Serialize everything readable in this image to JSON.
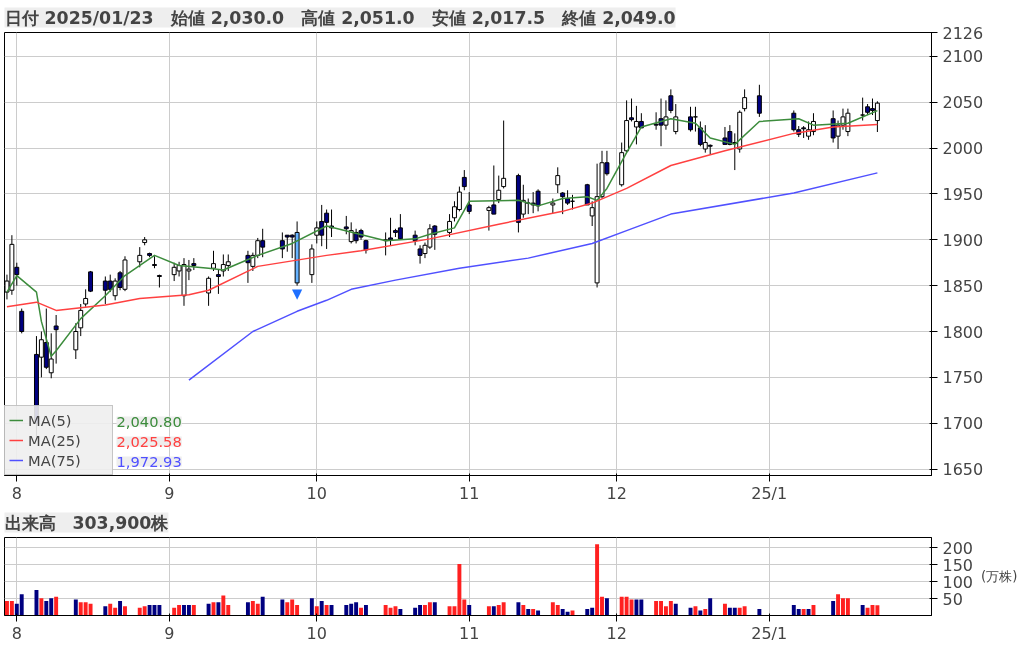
{
  "chart_data": [
    {
      "type": "candlestick",
      "title": "日付 2025/01/23　始値 2,030.0　高値 2,051.0　安値 2,017.5　終値 2,049.0",
      "x": [
        "2024-07-30",
        "2024-07-31",
        "2024-08-01",
        "2024-08-02",
        "2024-08-05",
        "2024-08-06",
        "2024-08-07",
        "2024-08-08",
        "2024-08-09",
        "2024-08-13",
        "2024-08-14",
        "2024-08-15",
        "2024-08-16",
        "2024-08-19",
        "2024-08-20",
        "2024-08-21",
        "2024-08-22",
        "2024-08-23",
        "2024-08-26",
        "2024-08-27",
        "2024-08-28",
        "2024-08-29",
        "2024-08-30",
        "2024-09-02",
        "2024-09-03",
        "2024-09-04",
        "2024-09-05",
        "2024-09-06",
        "2024-09-09",
        "2024-09-10",
        "2024-09-11",
        "2024-09-12",
        "2024-09-13",
        "2024-09-17",
        "2024-09-18",
        "2024-09-19",
        "2024-09-20",
        "2024-09-24",
        "2024-09-25",
        "2024-09-26",
        "2024-09-27",
        "2024-09-30",
        "2024-10-01",
        "2024-10-02",
        "2024-10-03",
        "2024-10-04",
        "2024-10-07",
        "2024-10-08",
        "2024-10-09",
        "2024-10-10",
        "2024-10-11",
        "2024-10-15",
        "2024-10-16",
        "2024-10-17",
        "2024-10-18",
        "2024-10-21",
        "2024-10-22",
        "2024-10-23",
        "2024-10-24",
        "2024-10-25",
        "2024-10-28",
        "2024-10-29",
        "2024-10-30",
        "2024-10-31",
        "2024-11-01",
        "2024-11-05",
        "2024-11-06",
        "2024-11-07",
        "2024-11-08",
        "2024-11-11",
        "2024-11-12",
        "2024-11-13",
        "2024-11-14",
        "2024-11-15",
        "2024-11-18",
        "2024-11-19",
        "2024-11-20",
        "2024-11-21",
        "2024-11-22",
        "2024-11-25",
        "2024-11-26",
        "2024-11-27",
        "2024-11-28",
        "2024-11-29",
        "2024-12-02",
        "2024-12-03",
        "2024-12-04",
        "2024-12-05",
        "2024-12-06",
        "2024-12-09",
        "2024-12-10",
        "2024-12-11",
        "2024-12-12",
        "2024-12-13",
        "2024-12-16",
        "2024-12-17",
        "2024-12-18",
        "2024-12-19",
        "2024-12-20",
        "2024-12-23",
        "2024-12-24",
        "2024-12-25",
        "2024-12-26",
        "2024-12-27",
        "2024-12-30",
        "2025-01-06",
        "2025-01-07",
        "2025-01-08",
        "2025-01-09",
        "2025-01-10",
        "2025-01-14",
        "2025-01-15",
        "2025-01-16",
        "2025-01-17",
        "2025-01-20",
        "2025-01-21",
        "2025-01-22",
        "2025-01-23"
      ],
      "ohlc": [
        [
          1843,
          1862,
          1835,
          1855
        ],
        [
          1845,
          1905,
          1840,
          1895
        ],
        [
          1870,
          1875,
          1850,
          1862
        ],
        [
          1822,
          1825,
          1798,
          1800
        ],
        [
          1775,
          1795,
          1685,
          1700
        ],
        [
          1772,
          1800,
          1750,
          1791
        ],
        [
          1788,
          1825,
          1759,
          1761
        ],
        [
          1755,
          1798,
          1749,
          1770
        ],
        [
          1806,
          1818,
          1765,
          1802
        ],
        [
          1780,
          1809,
          1770,
          1800
        ],
        [
          1804,
          1830,
          1795,
          1823
        ],
        [
          1830,
          1846,
          1827,
          1836
        ],
        [
          1865,
          1866,
          1843,
          1844
        ],
        [
          1855,
          1860,
          1830,
          1845
        ],
        [
          1855,
          1862,
          1843,
          1846
        ],
        [
          1839,
          1858,
          1834,
          1855
        ],
        [
          1864,
          1866,
          1845,
          1848
        ],
        [
          1846,
          1882,
          1844,
          1878
        ],
        [
          1876,
          1892,
          1870,
          1883
        ],
        [
          1897,
          1903,
          1894,
          1900
        ],
        [
          1885,
          1886,
          1881,
          1883
        ],
        [
          1873,
          1882,
          1869,
          1872
        ],
        [
          1861,
          1862,
          1848,
          1860
        ],
        [
          1862,
          1875,
          1855,
          1870
        ],
        [
          1866,
          1876,
          1860,
          1872
        ],
        [
          1839,
          1880,
          1828,
          1873
        ],
        [
          1866,
          1878,
          1856,
          1868
        ],
        [
          1874,
          1880,
          1867,
          1872
        ],
        [
          1842,
          1860,
          1828,
          1858
        ],
        [
          1869,
          1888,
          1866,
          1874
        ],
        [
          1862,
          1868,
          1841,
          1860
        ],
        [
          1866,
          1884,
          1860,
          1873
        ],
        [
          1872,
          1884,
          1866,
          1876
        ],
        [
          1883,
          1888,
          1853,
          1875
        ],
        [
          1871,
          1886,
          1866,
          1883
        ],
        [
          1883,
          1902,
          1880,
          1899
        ],
        [
          1899,
          1912,
          1881,
          1892
        ],
        [
          1899,
          1908,
          1880,
          1890
        ],
        [
          1905,
          1905,
          1887,
          1903
        ],
        [
          1905,
          1906,
          1880,
          1903
        ],
        [
          1908,
          1920,
          1850,
          1853
        ],
        [
          1862,
          1895,
          1853,
          1890
        ],
        [
          1905,
          1920,
          1896,
          1913
        ],
        [
          1920,
          1938,
          1893,
          1905
        ],
        [
          1929,
          1933,
          1890,
          1919
        ],
        [
          1915,
          1933,
          1903,
          1913
        ],
        [
          1914,
          1926,
          1906,
          1912
        ],
        [
          1898,
          1919,
          1896,
          1910
        ],
        [
          1908,
          1912,
          1896,
          1899
        ],
        [
          1910,
          1912,
          1900,
          1903
        ],
        [
          1899,
          1900,
          1885,
          1889
        ],
        [
          1899,
          1908,
          1883,
          1900
        ],
        [
          1902,
          1924,
          1894,
          1900
        ],
        [
          1910,
          1912,
          1903,
          1908
        ],
        [
          1913,
          1928,
          1901,
          1901
        ],
        [
          1905,
          1910,
          1894,
          1899
        ],
        [
          1890,
          1894,
          1874,
          1883
        ],
        [
          1885,
          1897,
          1880,
          1894
        ],
        [
          1892,
          1917,
          1890,
          1912
        ],
        [
          1915,
          1916,
          1889,
          1906
        ],
        [
          1908,
          1928,
          1903,
          1920
        ],
        [
          1924,
          1942,
          1920,
          1936
        ],
        [
          1933,
          1958,
          1931,
          1952
        ],
        [
          1968,
          1976,
          1954,
          1958
        ],
        [
          1938,
          1952,
          1928,
          1931
        ],
        [
          1932,
          1937,
          1910,
          1935
        ],
        [
          1938,
          1981,
          1928,
          1928
        ],
        [
          1944,
          1970,
          1940,
          1954
        ],
        [
          1958,
          2030,
          1956,
          1967
        ],
        [
          1970,
          1972,
          1908,
          1919
        ],
        [
          1928,
          1960,
          1924,
          1943
        ],
        [
          1940,
          1945,
          1928,
          1940
        ],
        [
          1940,
          1952,
          1929,
          1938
        ],
        [
          1953,
          1955,
          1931,
          1937
        ],
        [
          1938,
          1945,
          1929,
          1940
        ],
        [
          1960,
          1979,
          1951,
          1970
        ],
        [
          1951,
          1952,
          1928,
          1947
        ],
        [
          1945,
          1954,
          1938,
          1940
        ],
        [
          1942,
          1949,
          1933,
          1942
        ],
        [
          1960,
          1961,
          1938,
          1938
        ],
        [
          1926,
          1942,
          1915,
          1935
        ],
        [
          1853,
          1983,
          1848,
          1947
        ],
        [
          1947,
          1997,
          1945,
          1984
        ],
        [
          1984,
          1997,
          1970,
          1972
        ],
        [
          1960,
          2006,
          1958,
          1995
        ],
        [
          1997,
          2052,
          1995,
          2030
        ],
        [
          2033,
          2054,
          2029,
          2031
        ],
        [
          2023,
          2046,
          2004,
          2029
        ],
        [
          2029,
          2038,
          2022,
          2022
        ],
        [
          2026,
          2039,
          2020,
          2025
        ],
        [
          2032,
          2054,
          2002,
          2025
        ],
        [
          2025,
          2052,
          2020,
          2034
        ],
        [
          2057,
          2064,
          2038,
          2041
        ],
        [
          2018,
          2048,
          2015,
          2034
        ],
        [
          2034,
          2045,
          2018,
          2020
        ],
        [
          2034,
          2045,
          2018,
          2034
        ],
        [
          2022,
          2029,
          2002,
          2004
        ],
        [
          1999,
          2025,
          1995,
          2006
        ],
        [
          2003,
          2004,
          1993,
          2002
        ],
        [
          2011,
          2023,
          2004,
          2004
        ],
        [
          2018,
          2025,
          2003,
          2004
        ],
        [
          2006,
          2016,
          1976,
          2005
        ],
        [
          1999,
          2041,
          1995,
          2039
        ],
        [
          2043,
          2064,
          2040,
          2055
        ],
        [
          2057,
          2069,
          2034,
          2038
        ],
        [
          2038,
          2041,
          2018,
          2020
        ],
        [
          2020,
          2024,
          2012,
          2015
        ],
        [
          2022,
          2024,
          2011,
          2021
        ],
        [
          2013,
          2029,
          2009,
          2020
        ],
        [
          2018,
          2038,
          2014,
          2029
        ],
        [
          2032,
          2041,
          2006,
          2011
        ],
        [
          2013,
          2030,
          1999,
          2025
        ],
        [
          2025,
          2043,
          2020,
          2034
        ],
        [
          2018,
          2043,
          2013,
          2038
        ],
        [
          2036,
          2055,
          2030,
          2036
        ],
        [
          2045,
          2048,
          2036,
          2039
        ],
        [
          2043,
          2054,
          2036,
          2041
        ],
        [
          2030,
          2051,
          2017.5,
          2049
        ]
      ],
      "colors": [
        "#ffffff",
        "#ffffff",
        "#000080",
        "#000080",
        "#000080",
        "#ffffff",
        "#000080",
        "#ffffff",
        "#000080",
        "#ffffff",
        "#ffffff",
        "#ffffff",
        "#000080",
        "#000080",
        "#000080",
        "#ffffff",
        "#000080",
        "#ffffff",
        "#ffffff",
        "#ffffff",
        "#000080",
        "#000080",
        "#000080",
        "#ffffff",
        "#ffffff",
        "#ffffff",
        "#ffffff",
        "#000080",
        "#ffffff",
        "#ffffff",
        "#000080",
        "#ffffff",
        "#ffffff",
        "#000080",
        "#ffffff",
        "#ffffff",
        "#000080",
        "#000080",
        "#000080",
        "#000080",
        "#66b3ff",
        "#ffffff",
        "#ffffff",
        "#000080",
        "#000080",
        "#000080",
        "#000080",
        "#ffffff",
        "#000080",
        "#000080",
        "#000080",
        "#ffffff",
        "#000080",
        "#000080",
        "#000080",
        "#000080",
        "#000080",
        "#ffffff",
        "#ffffff",
        "#000080",
        "#ffffff",
        "#ffffff",
        "#ffffff",
        "#000080",
        "#000080",
        "#ffffff",
        "#000080",
        "#ffffff",
        "#ffffff",
        "#000080",
        "#ffffff",
        "#000000",
        "#000080",
        "#000080",
        "#ffffff",
        "#ffffff",
        "#000080",
        "#000080",
        "#000000",
        "#000080",
        "#ffffff",
        "#ffffff",
        "#ffffff",
        "#000080",
        "#ffffff",
        "#ffffff",
        "#000080",
        "#ffffff",
        "#000080",
        "#000080",
        "#000080",
        "#ffffff",
        "#000080",
        "#ffffff",
        "#000080",
        "#000000",
        "#000080",
        "#ffffff",
        "#000080",
        "#000080",
        "#000080",
        "#000080",
        "#ffffff",
        "#ffffff",
        "#000080",
        "#000080",
        "#000080",
        "#000080",
        "#ffffff",
        "#ffffff",
        "#000080",
        "#ffffff",
        "#ffffff",
        "#ffffff",
        "#000000",
        "#000080",
        "#000080",
        "#ffffff"
      ],
      "series": [
        {
          "name": "MA(5)",
          "type": "line",
          "color": "#3c8c3c",
          "x": [
            "2024-07-30",
            "2024-08-01",
            "2024-08-05",
            "2024-08-06",
            "2024-08-08",
            "2024-08-09",
            "2024-08-14",
            "2024-08-19",
            "2024-08-23",
            "2024-08-29",
            "2024-09-03",
            "2024-09-09",
            "2024-09-12",
            "2024-09-19",
            "2024-09-26",
            "2024-10-03",
            "2024-10-15",
            "2024-10-21",
            "2024-10-24",
            "2024-10-29",
            "2024-11-01",
            "2024-11-11",
            "2024-11-15",
            "2024-11-20",
            "2024-11-25",
            "2024-11-27",
            "2024-11-29",
            "2024-12-03",
            "2024-12-06",
            "2024-12-12",
            "2024-12-17",
            "2024-12-20",
            "2024-12-25",
            "2024-12-30",
            "2025-01-07",
            "2025-01-10",
            "2025-01-17",
            "2025-01-23"
          ],
          "values": [
            1843,
            1861,
            1843,
            1811,
            1773,
            1779,
            1814,
            1839,
            1861,
            1883,
            1872,
            1869,
            1867,
            1883,
            1896,
            1915,
            1899,
            1901,
            1906,
            1913,
            1942,
            1943,
            1937,
            1945,
            1947,
            1943,
            1956,
            1995,
            2023,
            2032,
            2027,
            2011,
            2004,
            2029,
            2032,
            2025,
            2027,
            2040.8
          ]
        },
        {
          "name": "MA(25)",
          "type": "line",
          "color": "#ff4040",
          "x": [
            "2024-07-30",
            "2024-08-05",
            "2024-08-09",
            "2024-08-19",
            "2024-08-26",
            "2024-09-05",
            "2024-09-09",
            "2024-09-19",
            "2024-10-03",
            "2024-10-10",
            "2024-10-24",
            "2024-11-07",
            "2024-11-20",
            "2024-11-26",
            "2024-12-03",
            "2024-12-12",
            "2024-12-23",
            "2025-01-06",
            "2025-01-14",
            "2025-01-23"
          ],
          "values": [
            1827,
            1832,
            1823,
            1829,
            1836,
            1840,
            1845,
            1871,
            1883,
            1888,
            1901,
            1917,
            1931,
            1940,
            1956,
            1981,
            1997,
            2016,
            2023,
            2025.58
          ]
        },
        {
          "name": "MA(75)",
          "type": "line",
          "color": "#5050ff",
          "x": [
            "2024-09-05",
            "2024-09-18",
            "2024-09-27",
            "2024-10-03",
            "2024-10-08",
            "2024-10-17",
            "2024-10-30",
            "2024-11-13",
            "2024-11-26",
            "2024-12-03",
            "2024-12-12",
            "2025-01-06",
            "2025-01-23"
          ],
          "values": [
            1747,
            1800,
            1822,
            1834,
            1846,
            1856,
            1869,
            1880,
            1896,
            1910,
            1928,
            1951,
            1972.93
          ]
        }
      ],
      "annotations": [
        "2,040.80",
        "2,025.58",
        "1,972.93",
        {
          "text": "▼",
          "x": "2024-09-27",
          "y": 1850
        }
      ],
      "xlim": [
        "2024-07-30",
        "2025-02-03"
      ],
      "ylim": [
        1643,
        2126
      ],
      "xticks": [
        {
          "value": "2024-08-01",
          "label": "8"
        },
        {
          "value": "2024-09-01",
          "label": "9"
        },
        {
          "value": "2024-10-01",
          "label": "10"
        },
        {
          "value": "2024-11-01",
          "label": "11"
        },
        {
          "value": "2024-12-01",
          "label": "12"
        },
        {
          "value": "2025-01-01",
          "label": "25/1"
        }
      ],
      "yticks": [
        1650,
        1700,
        1750,
        1800,
        1850,
        1900,
        1950,
        2000,
        2050,
        2100,
        2126
      ],
      "grid": true,
      "legend": "bottom left"
    },
    {
      "type": "bar",
      "title": "出来高　303,900株",
      "ylabel": "(万株)",
      "x": [
        "2024-07-30",
        "2024-07-31",
        "2024-08-01",
        "2024-08-02",
        "2024-08-05",
        "2024-08-06",
        "2024-08-07",
        "2024-08-08",
        "2024-08-09",
        "2024-08-13",
        "2024-08-14",
        "2024-08-15",
        "2024-08-16",
        "2024-08-19",
        "2024-08-20",
        "2024-08-21",
        "2024-08-22",
        "2024-08-23",
        "2024-08-26",
        "2024-08-27",
        "2024-08-28",
        "2024-08-29",
        "2024-08-30",
        "2024-09-02",
        "2024-09-03",
        "2024-09-04",
        "2024-09-05",
        "2024-09-06",
        "2024-09-09",
        "2024-09-10",
        "2024-09-11",
        "2024-09-12",
        "2024-09-13",
        "2024-09-17",
        "2024-09-18",
        "2024-09-19",
        "2024-09-20",
        "2024-09-24",
        "2024-09-25",
        "2024-09-26",
        "2024-09-27",
        "2024-09-30",
        "2024-10-01",
        "2024-10-02",
        "2024-10-03",
        "2024-10-04",
        "2024-10-07",
        "2024-10-08",
        "2024-10-09",
        "2024-10-10",
        "2024-10-11",
        "2024-10-15",
        "2024-10-16",
        "2024-10-17",
        "2024-10-18",
        "2024-10-21",
        "2024-10-22",
        "2024-10-23",
        "2024-10-24",
        "2024-10-25",
        "2024-10-28",
        "2024-10-29",
        "2024-10-30",
        "2024-10-31",
        "2024-11-01",
        "2024-11-05",
        "2024-11-06",
        "2024-11-07",
        "2024-11-08",
        "2024-11-11",
        "2024-11-12",
        "2024-11-13",
        "2024-11-14",
        "2024-11-15",
        "2024-11-18",
        "2024-11-19",
        "2024-11-20",
        "2024-11-21",
        "2024-11-22",
        "2024-11-25",
        "2024-11-26",
        "2024-11-27",
        "2024-11-28",
        "2024-11-29",
        "2024-12-02",
        "2024-12-03",
        "2024-12-04",
        "2024-12-05",
        "2024-12-06",
        "2024-12-09",
        "2024-12-10",
        "2024-12-11",
        "2024-12-12",
        "2024-12-13",
        "2024-12-16",
        "2024-12-17",
        "2024-12-18",
        "2024-12-19",
        "2024-12-20",
        "2024-12-23",
        "2024-12-24",
        "2024-12-25",
        "2024-12-26",
        "2024-12-27",
        "2024-12-30",
        "2025-01-06",
        "2025-01-07",
        "2025-01-08",
        "2025-01-09",
        "2025-01-10",
        "2025-01-14",
        "2025-01-15",
        "2025-01-16",
        "2025-01-17",
        "2025-01-20",
        "2025-01-21",
        "2025-01-22",
        "2025-01-23"
      ],
      "values": [
        43,
        43,
        35,
        63,
        75,
        51,
        43,
        51,
        55,
        47,
        39,
        39,
        35,
        27,
        35,
        23,
        43,
        27,
        23,
        27,
        31,
        31,
        31,
        23,
        31,
        31,
        31,
        31,
        35,
        39,
        39,
        59,
        31,
        39,
        43,
        35,
        55,
        47,
        39,
        47,
        31,
        51,
        27,
        43,
        31,
        31,
        31,
        35,
        39,
        23,
        31,
        31,
        23,
        27,
        19,
        23,
        31,
        31,
        39,
        39,
        27,
        27,
        152,
        47,
        31,
        27,
        27,
        31,
        39,
        39,
        31,
        19,
        19,
        15,
        39,
        31,
        19,
        11,
        15,
        19,
        23,
        210,
        55,
        51,
        55,
        55,
        47,
        47,
        47,
        43,
        43,
        27,
        43,
        35,
        23,
        27,
        15,
        19,
        51,
        35,
        23,
        23,
        23,
        27,
        19,
        31,
        19,
        19,
        19,
        31,
        43,
        63,
        51,
        51,
        31,
        23,
        31,
        30.39
      ],
      "colors": [
        "#ff2020",
        "#ff2020",
        "#000080",
        "#000080",
        "#000080",
        "#ff2020",
        "#000080",
        "#000080",
        "#ff2020",
        "#000080",
        "#ff2020",
        "#ff2020",
        "#ff2020",
        "#000080",
        "#ff2020",
        "#ff2020",
        "#000080",
        "#ff2020",
        "#ff2020",
        "#ff2020",
        "#000080",
        "#000080",
        "#000080",
        "#ff2020",
        "#ff2020",
        "#000080",
        "#000080",
        "#ff2020",
        "#000080",
        "#ff2020",
        "#000080",
        "#ff2020",
        "#ff2020",
        "#000080",
        "#ff2020",
        "#ff2020",
        "#000080",
        "#000080",
        "#ff2020",
        "#ff2020",
        "#ff2020",
        "#000080",
        "#ff2020",
        "#000080",
        "#ff2020",
        "#000080",
        "#000080",
        "#000080",
        "#000080",
        "#ff2020",
        "#000080",
        "#ff2020",
        "#ff2020",
        "#ff2020",
        "#000080",
        "#000080",
        "#000080",
        "#ff2020",
        "#ff2020",
        "#000080",
        "#ff2020",
        "#ff2020",
        "#ff2020",
        "#ff2020",
        "#000080",
        "#ff2020",
        "#000080",
        "#ff2020",
        "#ff2020",
        "#000080",
        "#ff2020",
        "#000080",
        "#ff2020",
        "#000080",
        "#ff2020",
        "#ff2020",
        "#000080",
        "#000080",
        "#ff2020",
        "#000080",
        "#000080",
        "#ff2020",
        "#ff2020",
        "#000080",
        "#ff2020",
        "#ff2020",
        "#ff2020",
        "#000080",
        "#000080",
        "#ff2020",
        "#ff2020",
        "#ff2020",
        "#ff2020",
        "#000080",
        "#000080",
        "#ff2020",
        "#000080",
        "#ff2020",
        "#000080",
        "#ff2020",
        "#000080",
        "#000080",
        "#ff2020",
        "#ff2020",
        "#000080",
        "#000080",
        "#000080",
        "#ff2020",
        "#000080",
        "#ff2020",
        "#000080",
        "#ff2020",
        "#ff2020",
        "#ff2020",
        "#000080",
        "#ff2020",
        "#ff2020",
        "#ff2020"
      ],
      "xlim": [
        "2024-07-30",
        "2025-02-03"
      ],
      "ylim": [
        0,
        230
      ],
      "xticks": [
        {
          "value": "2024-08-01",
          "label": "8"
        },
        {
          "value": "2024-09-01",
          "label": "9"
        },
        {
          "value": "2024-10-01",
          "label": "10"
        },
        {
          "value": "2024-11-01",
          "label": "11"
        },
        {
          "value": "2024-12-01",
          "label": "12"
        },
        {
          "value": "2025-01-01",
          "label": "25/1"
        }
      ],
      "yticks": [
        50,
        100,
        150,
        200
      ],
      "grid": true
    }
  ]
}
